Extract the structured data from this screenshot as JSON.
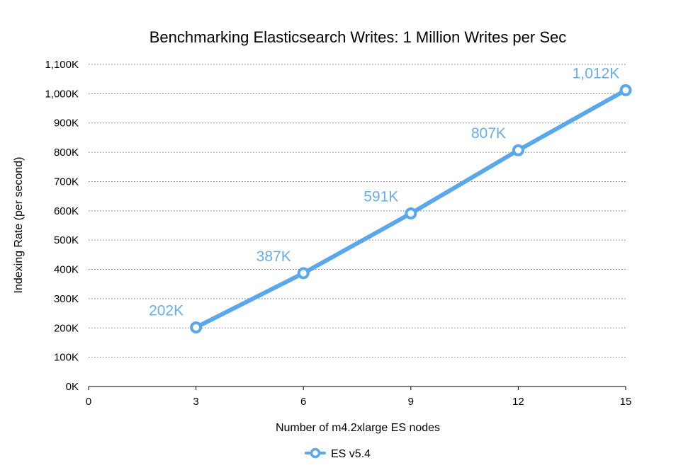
{
  "chart_data": {
    "type": "line",
    "title": "Benchmarking Elasticsearch Writes: 1 Million Writes per Sec",
    "xlabel": "Number of m4.2xlarge ES nodes",
    "ylabel": "Indexing Rate (per second)",
    "xlim": [
      0,
      15
    ],
    "ylim": [
      0,
      1100000
    ],
    "x_ticks": [
      0,
      3,
      6,
      9,
      12,
      15
    ],
    "x_tick_labels": [
      "0",
      "3",
      "6",
      "9",
      "12",
      "15"
    ],
    "y_ticks": [
      0,
      100000,
      200000,
      300000,
      400000,
      500000,
      600000,
      700000,
      800000,
      900000,
      1000000,
      1100000
    ],
    "y_tick_labels": [
      "0K",
      "100K",
      "200K",
      "300K",
      "400K",
      "500K",
      "600K",
      "700K",
      "800K",
      "900K",
      "1,000K",
      "1,100K"
    ],
    "grid": true,
    "legend_position": "bottom-center",
    "series": [
      {
        "name": "ES v5.4",
        "color": "#5aa8ec",
        "label_color": "#6aaee6",
        "x": [
          3,
          6,
          9,
          12,
          15
        ],
        "values": [
          202000,
          387000,
          591000,
          807000,
          1012000
        ],
        "data_labels": [
          "202K",
          "387K",
          "591K",
          "807K",
          "1,012K"
        ]
      }
    ]
  }
}
